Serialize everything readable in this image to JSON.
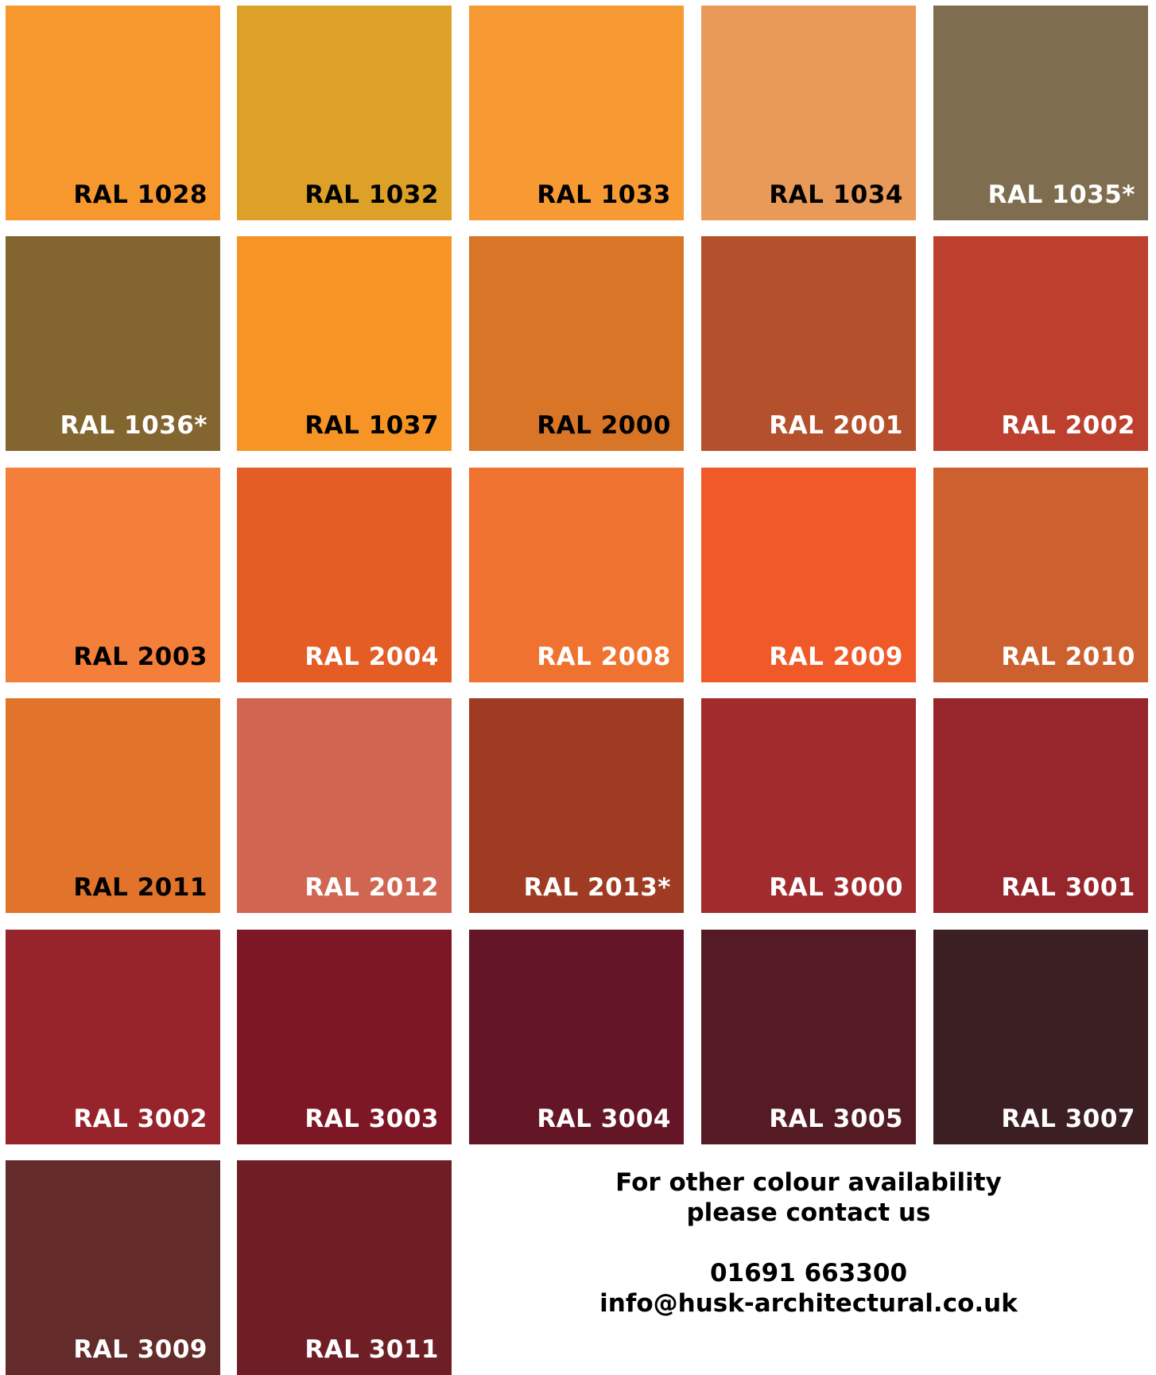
{
  "swatches": [
    {
      "label": "RAL 1028",
      "color": "#f7982f",
      "text_color": "dark"
    },
    {
      "label": "RAL 1032",
      "color": "#dda128",
      "text_color": "dark"
    },
    {
      "label": "RAL 1033",
      "color": "#f79a33",
      "text_color": "dark"
    },
    {
      "label": "RAL 1034",
      "color": "#e99a59",
      "text_color": "dark"
    },
    {
      "label": "RAL 1035*",
      "color": "#7e6d4e",
      "text_color": "light"
    },
    {
      "label": "RAL 1036*",
      "color": "#83652f",
      "text_color": "light"
    },
    {
      "label": "RAL 1037",
      "color": "#f69426",
      "text_color": "dark"
    },
    {
      "label": "RAL 2000",
      "color": "#d87527",
      "text_color": "dark"
    },
    {
      "label": "RAL 2001",
      "color": "#b5502d",
      "text_color": "light"
    },
    {
      "label": "RAL 2002",
      "color": "#bd3f2e",
      "text_color": "light"
    },
    {
      "label": "RAL 2003",
      "color": "#f37f3a",
      "text_color": "dark"
    },
    {
      "label": "RAL 2004",
      "color": "#e35d25",
      "text_color": "light"
    },
    {
      "label": "RAL 2008",
      "color": "#ef7230",
      "text_color": "light"
    },
    {
      "label": "RAL 2009",
      "color": "#ef5a28",
      "text_color": "light"
    },
    {
      "label": "RAL 2010",
      "color": "#cc612f",
      "text_color": "light"
    },
    {
      "label": "RAL 2011",
      "color": "#e1742a",
      "text_color": "dark"
    },
    {
      "label": "RAL 2012",
      "color": "#d06651",
      "text_color": "light"
    },
    {
      "label": "RAL 2013*",
      "color": "#9f3b23",
      "text_color": "light"
    },
    {
      "label": "RAL 3000",
      "color": "#a22b2e",
      "text_color": "light"
    },
    {
      "label": "RAL 3001",
      "color": "#97252c",
      "text_color": "light"
    },
    {
      "label": "RAL 3002",
      "color": "#97232b",
      "text_color": "light"
    },
    {
      "label": "RAL 3003",
      "color": "#7e1725",
      "text_color": "light"
    },
    {
      "label": "RAL 3004",
      "color": "#641627",
      "text_color": "light"
    },
    {
      "label": "RAL 3005",
      "color": "#541b24",
      "text_color": "light"
    },
    {
      "label": "RAL 3007",
      "color": "#3b1f22",
      "text_color": "light"
    },
    {
      "label": "RAL 3009",
      "color": "#632b29",
      "text_color": "light"
    },
    {
      "label": "RAL 3011",
      "color": "#6f1e26",
      "text_color": "light"
    }
  ],
  "contact": {
    "line1": "For other colour availability",
    "line2": "please contact us",
    "phone": "01691 663300",
    "email": "info@husk-architectural.co.uk"
  }
}
